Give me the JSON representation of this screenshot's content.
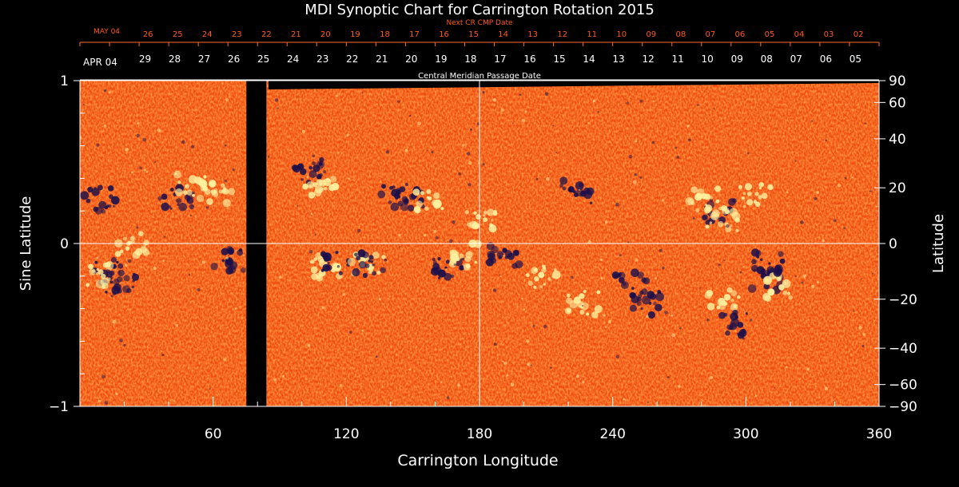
{
  "chart_data": {
    "type": "heatmap",
    "title": "MDI Synoptic Chart for Carrington Rotation 2015",
    "xlabel": "Carrington Longitude",
    "ylabel_left": "Sine Latitude",
    "ylabel_right": "Latitude",
    "xlim": [
      0,
      360
    ],
    "ylim": [
      -1,
      1
    ],
    "x_ticks": [
      "60",
      "120",
      "180",
      "240",
      "300",
      "360"
    ],
    "x_tick_values": [
      60,
      120,
      180,
      240,
      300,
      360
    ],
    "y_left_ticks": [
      {
        "value": 1,
        "label": "1"
      },
      {
        "value": 0,
        "label": "0"
      },
      {
        "value": -1,
        "label": "−1"
      }
    ],
    "y_right_ticks": [
      {
        "deg": 90,
        "label": "90"
      },
      {
        "deg": 60,
        "label": "60"
      },
      {
        "deg": 40,
        "label": "40"
      },
      {
        "deg": 20,
        "label": "20"
      },
      {
        "deg": 0,
        "label": "0"
      },
      {
        "deg": -20,
        "label": "−20"
      },
      {
        "deg": -40,
        "label": "−40"
      },
      {
        "deg": -60,
        "label": "−60"
      },
      {
        "deg": -90,
        "label": "−90"
      }
    ],
    "crosshair": {
      "longitude": 180,
      "sine_latitude": 0
    },
    "cmp_axis_label": "Central Meridian Passage Date",
    "cmp_start_label": "APR 04",
    "cmp_dates": [
      "29",
      "28",
      "27",
      "26",
      "25",
      "24",
      "23",
      "22",
      "21",
      "20",
      "19",
      "18",
      "17",
      "16",
      "15",
      "14",
      "13",
      "12",
      "11",
      "10",
      "09",
      "08",
      "07",
      "06",
      "05"
    ],
    "next_cr_label": "Next CR CMP Date",
    "next_cr_start_label": "MAY 04",
    "next_cr_dates": [
      "26",
      "25",
      "24",
      "23",
      "22",
      "21",
      "20",
      "19",
      "18",
      "17",
      "16",
      "15",
      "14",
      "13",
      "12",
      "11",
      "10",
      "09",
      "08",
      "07",
      "06",
      "05",
      "04",
      "03",
      "02"
    ],
    "data_gap_longitude": [
      75,
      84
    ],
    "colors": {
      "background_field": "#ff5a14",
      "positive": "#fff2a0",
      "negative": "#1a0f4a",
      "grid": "#ffffff",
      "next_cr": "#ff5a1a"
    }
  }
}
